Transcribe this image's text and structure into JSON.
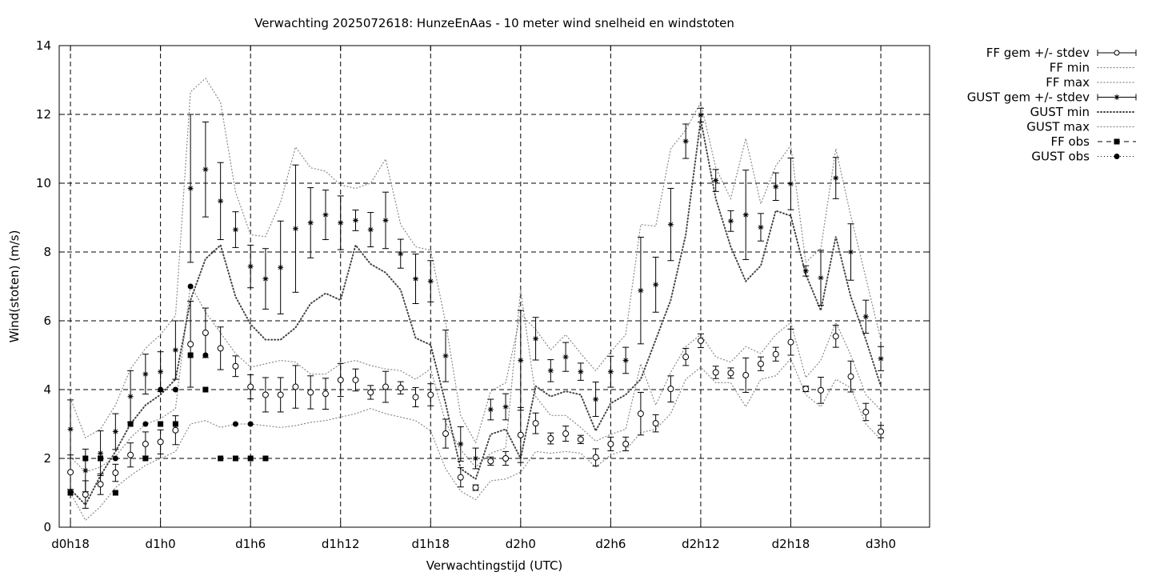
{
  "chart_data": {
    "type": "scatter",
    "title": "Verwachting 2025072618: HunzeEnAas - 10 meter wind snelheid en windstoten",
    "xlabel": "Verwachtingstijd (UTC)",
    "ylabel": "Wind(stoten) (m/s)",
    "xlim_hours": [
      17.25,
      75.25
    ],
    "ylim": [
      0,
      14
    ],
    "yticks": [
      0,
      2,
      4,
      6,
      8,
      10,
      12,
      14
    ],
    "xticks": [
      {
        "h": 18,
        "label": "d0h18"
      },
      {
        "h": 24,
        "label": "d1h0"
      },
      {
        "h": 30,
        "label": "d1h6"
      },
      {
        "h": 36,
        "label": "d1h12"
      },
      {
        "h": 42,
        "label": "d1h18"
      },
      {
        "h": 48,
        "label": "d2h0"
      },
      {
        "h": 54,
        "label": "d2h6"
      },
      {
        "h": 60,
        "label": "d2h12"
      },
      {
        "h": 66,
        "label": "d2h18"
      },
      {
        "h": 72,
        "label": "d3h0"
      }
    ],
    "grid": true,
    "legend_position": "top-right-outside",
    "legend": [
      {
        "label": "FF gem +/- stdev",
        "style": "errorbar-circle"
      },
      {
        "label": "FF min",
        "style": "dotted"
      },
      {
        "label": "FF max",
        "style": "dotted"
      },
      {
        "label": "GUST gem +/- stdev",
        "style": "errorbar-star"
      },
      {
        "label": "GUST min",
        "style": "dotted-bold"
      },
      {
        "label": "GUST max",
        "style": "dotted"
      },
      {
        "label": "FF obs",
        "style": "square"
      },
      {
        "label": "GUST obs",
        "style": "dot"
      }
    ],
    "hours": [
      18,
      19,
      20,
      21,
      22,
      23,
      24,
      25,
      26,
      27,
      28,
      29,
      30,
      31,
      32,
      33,
      34,
      35,
      36,
      37,
      38,
      39,
      40,
      41,
      42,
      43,
      44,
      45,
      46,
      47,
      48,
      49,
      50,
      51,
      52,
      53,
      54,
      55,
      56,
      57,
      58,
      59,
      60,
      61,
      62,
      63,
      64,
      65,
      66,
      67,
      68,
      69,
      70,
      71,
      72
    ],
    "ff_mean": [
      1.6,
      0.95,
      1.25,
      1.58,
      2.1,
      2.42,
      2.48,
      2.82,
      5.32,
      5.65,
      5.2,
      4.68,
      4.08,
      3.85,
      3.85,
      4.08,
      3.92,
      3.88,
      4.28,
      4.28,
      3.92,
      4.08,
      4.05,
      3.78,
      3.85,
      2.72,
      1.45,
      1.15,
      1.92,
      2.0,
      2.68,
      3.02,
      2.58,
      2.72,
      2.55,
      2.03,
      2.42,
      2.42,
      3.3,
      3.02,
      4.02,
      4.95,
      5.42,
      4.5,
      4.48,
      4.42,
      4.75,
      5.03,
      5.38,
      4.02,
      3.98,
      5.55,
      4.38,
      3.35,
      2.78
    ],
    "ff_sd": [
      0.5,
      0.4,
      0.3,
      0.25,
      0.35,
      0.35,
      0.35,
      0.42,
      1.25,
      0.72,
      0.62,
      0.3,
      0.35,
      0.5,
      0.5,
      0.62,
      0.48,
      0.45,
      0.48,
      0.32,
      0.2,
      0.45,
      0.18,
      0.28,
      0.32,
      0.42,
      0.28,
      0.08,
      0.12,
      0.2,
      0.8,
      0.3,
      0.16,
      0.22,
      0.12,
      0.25,
      0.2,
      0.2,
      0.62,
      0.25,
      0.38,
      0.25,
      0.2,
      0.18,
      0.15,
      0.5,
      0.2,
      0.2,
      0.38,
      0.08,
      0.38,
      0.32,
      0.45,
      0.25,
      0.18
    ],
    "gust_mean": [
      2.85,
      1.65,
      2.15,
      2.78,
      3.8,
      4.45,
      4.52,
      5.15,
      9.85,
      10.4,
      9.48,
      8.65,
      7.58,
      7.22,
      7.55,
      8.68,
      8.85,
      9.08,
      8.85,
      8.92,
      8.65,
      8.92,
      7.95,
      7.22,
      7.15,
      4.98,
      2.42,
      2.0,
      3.42,
      3.5,
      4.85,
      5.48,
      4.55,
      4.95,
      4.52,
      3.72,
      4.52,
      4.85,
      6.88,
      7.05,
      8.8,
      11.22,
      11.98,
      10.08,
      8.9,
      9.08,
      8.72,
      9.9,
      9.98,
      7.45,
      7.25,
      10.15,
      8.0,
      6.12,
      4.9
    ],
    "gust_sd": [
      0.85,
      0.62,
      0.65,
      0.52,
      0.75,
      0.58,
      0.58,
      0.85,
      2.15,
      1.38,
      1.12,
      0.52,
      0.62,
      0.88,
      1.35,
      1.85,
      1.02,
      0.72,
      0.78,
      0.3,
      0.5,
      0.82,
      0.42,
      0.72,
      0.6,
      0.75,
      0.5,
      0.3,
      0.3,
      0.38,
      1.45,
      0.62,
      0.32,
      0.42,
      0.25,
      0.5,
      0.45,
      0.38,
      1.55,
      0.8,
      1.05,
      0.5,
      0.2,
      0.32,
      0.3,
      1.3,
      0.4,
      0.4,
      0.75,
      0.15,
      0.8,
      0.6,
      0.82,
      0.48,
      0.35
    ],
    "ff_min": [
      1.0,
      0.2,
      0.6,
      1.15,
      1.5,
      1.8,
      2.0,
      2.2,
      3.0,
      3.1,
      2.9,
      3.0,
      3.0,
      2.95,
      2.9,
      2.95,
      3.05,
      3.1,
      3.2,
      3.3,
      3.45,
      3.3,
      3.2,
      3.1,
      2.8,
      1.7,
      1.05,
      0.8,
      1.35,
      1.4,
      1.6,
      2.2,
      2.15,
      2.2,
      2.15,
      1.75,
      2.1,
      2.25,
      2.75,
      2.85,
      3.3,
      4.3,
      4.65,
      4.2,
      4.2,
      3.5,
      4.3,
      4.4,
      4.9,
      3.85,
      3.5,
      4.3,
      4.05,
      3.0,
      2.55
    ],
    "ff_max": [
      2.05,
      1.6,
      1.75,
      2.05,
      2.6,
      3.0,
      3.15,
      3.45,
      7.05,
      6.25,
      5.65,
      5.05,
      4.65,
      4.75,
      4.85,
      4.8,
      4.45,
      4.45,
      4.75,
      4.85,
      4.7,
      4.6,
      4.55,
      4.3,
      4.6,
      3.05,
      2.25,
      1.75,
      2.15,
      2.3,
      6.9,
      3.8,
      3.25,
      3.25,
      2.9,
      2.5,
      2.7,
      2.85,
      4.75,
      3.55,
      4.5,
      5.25,
      5.6,
      4.95,
      4.8,
      5.25,
      5.05,
      5.6,
      5.95,
      4.35,
      4.85,
      5.95,
      5.0,
      3.85,
      3.4
    ],
    "gust_min": [
      1.1,
      0.65,
      1.5,
      2.2,
      3.0,
      3.55,
      3.85,
      4.3,
      6.6,
      7.8,
      8.2,
      6.7,
      5.9,
      5.45,
      5.45,
      5.8,
      6.5,
      6.8,
      6.6,
      8.2,
      7.65,
      7.4,
      6.9,
      5.5,
      5.3,
      3.6,
      1.7,
      1.4,
      2.7,
      2.85,
      2.0,
      4.1,
      3.8,
      3.95,
      3.85,
      2.8,
      3.6,
      3.85,
      4.3,
      5.45,
      6.6,
      8.5,
      11.85,
      9.55,
      8.15,
      7.15,
      7.6,
      9.2,
      9.05,
      7.35,
      6.3,
      8.45,
      6.7,
      5.45,
      4.1
    ],
    "gust_max": [
      3.75,
      2.6,
      2.85,
      3.55,
      4.6,
      5.2,
      5.6,
      6.15,
      12.65,
      13.05,
      12.35,
      9.75,
      8.5,
      8.45,
      9.45,
      11.05,
      10.45,
      10.35,
      9.95,
      9.85,
      10.0,
      10.7,
      8.8,
      8.15,
      8.05,
      5.95,
      3.25,
      2.45,
      3.95,
      4.2,
      6.2,
      5.75,
      5.15,
      5.6,
      5.05,
      4.55,
      5.1,
      5.6,
      8.8,
      8.75,
      11.0,
      11.55,
      12.35,
      10.45,
      9.55,
      11.3,
      9.4,
      10.5,
      11.1,
      7.7,
      8.1,
      11.0,
      9.05,
      7.25,
      5.45
    ],
    "ff_obs_hours": [
      18,
      19,
      20,
      21,
      22,
      23,
      24,
      25,
      26,
      27,
      28,
      29,
      30,
      31
    ],
    "ff_obs": [
      1,
      2,
      2,
      1,
      3,
      2,
      3,
      3,
      5,
      4,
      2,
      2,
      2,
      2
    ],
    "gust_obs_hours": [
      18,
      20,
      21,
      23,
      24,
      25,
      26,
      27,
      29,
      30
    ],
    "gust_obs": [
      1,
      2,
      2,
      3,
      4,
      4,
      7,
      5,
      3,
      3
    ]
  }
}
